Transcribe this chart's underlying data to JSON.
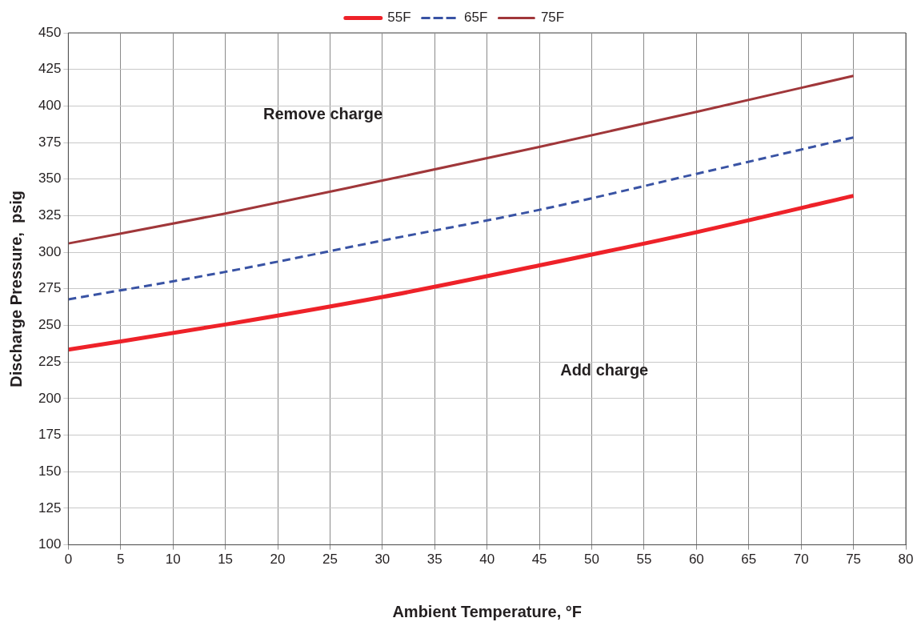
{
  "chart_data": {
    "type": "line",
    "xlabel": "Ambient Temperature, °F",
    "ylabel": "Discharge Pressure,  psig",
    "x": [
      0,
      15,
      30,
      45,
      60,
      75
    ],
    "series": [
      {
        "name": "55F",
        "color": "#ee2229",
        "line_style": "solid",
        "values": [
          233.4,
          250.6,
          269.4,
          291,
          313.7,
          338.6
        ]
      },
      {
        "name": "65F",
        "color": "#3953a4",
        "line_style": "dashed",
        "values": [
          267.8,
          286.6,
          308,
          329,
          353.6,
          378.5
        ]
      },
      {
        "name": "75F",
        "color": "#a0373a",
        "line_style": "solid",
        "values": [
          306,
          326.5,
          349,
          372,
          396,
          420.6
        ]
      }
    ],
    "xlim": [
      0,
      80
    ],
    "xticks": [
      0,
      5,
      10,
      15,
      20,
      25,
      30,
      35,
      40,
      45,
      50,
      55,
      60,
      65,
      70,
      75,
      80
    ],
    "ylim": [
      100,
      450
    ],
    "yticks": [
      100,
      125,
      150,
      175,
      200,
      225,
      250,
      275,
      300,
      325,
      350,
      375,
      400,
      425,
      450
    ],
    "grid": true,
    "legend": "top",
    "marker": "none",
    "annotations": [
      "Remove charge",
      "Add charge"
    ]
  }
}
